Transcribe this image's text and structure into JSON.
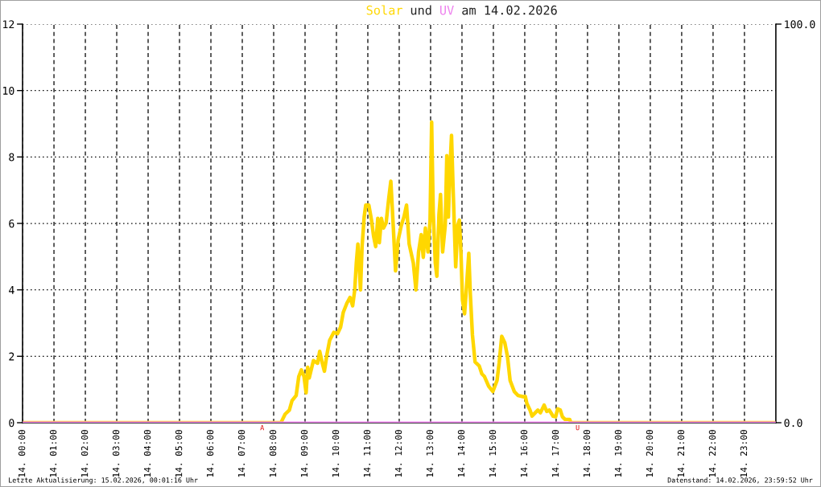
{
  "chart_data": {
    "type": "line",
    "title": "Solar und UV am 14.02.2026",
    "xlim": [
      "2026-02-14T00:00",
      "2026-02-15T00:00"
    ],
    "xticks": [
      {
        "value": "2026-02-14T00:00",
        "label": "14. 00:00"
      },
      {
        "value": "2026-02-14T01:00",
        "label": "14. 01:00"
      },
      {
        "value": "2026-02-14T02:00",
        "label": "14. 02:00"
      },
      {
        "value": "2026-02-14T03:00",
        "label": "14. 03:00"
      },
      {
        "value": "2026-02-14T04:00",
        "label": "14. 04:00"
      },
      {
        "value": "2026-02-14T05:00",
        "label": "14. 05:00"
      },
      {
        "value": "2026-02-14T06:00",
        "label": "14. 06:00"
      },
      {
        "value": "2026-02-14T07:00",
        "label": "14. 07:00"
      },
      {
        "value": "2026-02-14T08:00",
        "label": "14. 08:00"
      },
      {
        "value": "2026-02-14T09:00",
        "label": "14. 09:00"
      },
      {
        "value": "2026-02-14T10:00",
        "label": "14. 10:00"
      },
      {
        "value": "2026-02-14T11:00",
        "label": "14. 11:00"
      },
      {
        "value": "2026-02-14T12:00",
        "label": "14. 12:00"
      },
      {
        "value": "2026-02-14T13:00",
        "label": "14. 13:00"
      },
      {
        "value": "2026-02-14T14:00",
        "label": "14. 14:00"
      },
      {
        "value": "2026-02-14T15:00",
        "label": "14. 15:00"
      },
      {
        "value": "2026-02-14T16:00",
        "label": "14. 16:00"
      },
      {
        "value": "2026-02-14T17:00",
        "label": "14. 17:00"
      },
      {
        "value": "2026-02-14T18:00",
        "label": "14. 18:00"
      },
      {
        "value": "2026-02-14T19:00",
        "label": "14. 19:00"
      },
      {
        "value": "2026-02-14T20:00",
        "label": "14. 20:00"
      },
      {
        "value": "2026-02-14T21:00",
        "label": "14. 21:00"
      },
      {
        "value": "2026-02-14T22:00",
        "label": "14. 22:00"
      },
      {
        "value": "2026-02-14T23:00",
        "label": "14. 23:00"
      }
    ],
    "ylim": [
      0,
      12
    ],
    "yticks": [
      0,
      2,
      4,
      6,
      8,
      10,
      12
    ],
    "y2lim": [
      0,
      100
    ],
    "y2ticks": [
      {
        "value": 0,
        "label": "0.0"
      },
      {
        "value": 100,
        "label": "100.0"
      }
    ],
    "grid": true,
    "line_style": "solid",
    "series": [
      {
        "color": "#ffd700",
        "x": [
          "2026-02-14T00:00",
          "2026-02-14T08:14",
          "2026-02-14T08:17",
          "2026-02-14T08:22",
          "2026-02-14T08:30",
          "2026-02-14T08:35",
          "2026-02-14T08:43",
          "2026-02-14T08:48",
          "2026-02-14T08:53",
          "2026-02-14T08:58",
          "2026-02-14T09:02",
          "2026-02-14T09:05",
          "2026-02-14T09:08",
          "2026-02-14T09:16",
          "2026-02-14T09:24",
          "2026-02-14T09:28",
          "2026-02-14T09:33",
          "2026-02-14T09:37",
          "2026-02-14T09:42",
          "2026-02-14T09:47",
          "2026-02-14T09:55",
          "2026-02-14T10:02",
          "2026-02-14T10:08",
          "2026-02-14T10:13",
          "2026-02-14T10:20",
          "2026-02-14T10:26",
          "2026-02-14T10:31",
          "2026-02-14T10:35",
          "2026-02-14T10:38",
          "2026-02-14T10:41",
          "2026-02-14T10:44",
          "2026-02-14T10:46",
          "2026-02-14T10:49",
          "2026-02-14T10:53",
          "2026-02-14T10:56",
          "2026-02-14T11:02",
          "2026-02-14T11:07",
          "2026-02-14T11:11",
          "2026-02-14T11:15",
          "2026-02-14T11:19",
          "2026-02-14T11:22",
          "2026-02-14T11:26",
          "2026-02-14T11:30",
          "2026-02-14T11:35",
          "2026-02-14T11:40",
          "2026-02-14T11:44",
          "2026-02-14T11:48",
          "2026-02-14T11:53",
          "2026-02-14T11:58",
          "2026-02-14T12:04",
          "2026-02-14T12:09",
          "2026-02-14T12:14",
          "2026-02-14T12:19",
          "2026-02-14T12:27",
          "2026-02-14T12:32",
          "2026-02-14T12:37",
          "2026-02-14T12:42",
          "2026-02-14T12:46",
          "2026-02-14T12:50",
          "2026-02-14T12:55",
          "2026-02-14T12:59",
          "2026-02-14T13:02",
          "2026-02-14T13:05",
          "2026-02-14T13:09",
          "2026-02-14T13:12",
          "2026-02-14T13:16",
          "2026-02-14T13:19",
          "2026-02-14T13:23",
          "2026-02-14T13:28",
          "2026-02-14T13:31",
          "2026-02-14T13:34",
          "2026-02-14T13:37",
          "2026-02-14T13:40",
          "2026-02-14T13:43",
          "2026-02-14T13:47",
          "2026-02-14T13:48",
          "2026-02-14T13:52",
          "2026-02-14T13:55",
          "2026-02-14T13:58",
          "2026-02-14T14:01",
          "2026-02-14T14:05",
          "2026-02-14T14:09",
          "2026-02-14T14:13",
          "2026-02-14T14:16",
          "2026-02-14T14:20",
          "2026-02-14T14:25",
          "2026-02-14T14:33",
          "2026-02-14T14:38",
          "2026-02-14T14:43",
          "2026-02-14T14:51",
          "2026-02-14T14:59",
          "2026-02-14T15:07",
          "2026-02-14T15:11",
          "2026-02-14T15:16",
          "2026-02-14T15:22",
          "2026-02-14T15:27",
          "2026-02-14T15:32",
          "2026-02-14T15:40",
          "2026-02-14T15:47",
          "2026-02-14T15:58",
          "2026-02-14T16:01",
          "2026-02-14T16:04",
          "2026-02-14T16:10",
          "2026-02-14T16:14",
          "2026-02-14T16:20",
          "2026-02-14T16:25",
          "2026-02-14T16:30",
          "2026-02-14T16:37",
          "2026-02-14T16:42",
          "2026-02-14T16:47",
          "2026-02-14T16:54",
          "2026-02-14T16:59",
          "2026-02-14T17:03",
          "2026-02-14T17:08",
          "2026-02-14T17:12",
          "2026-02-14T17:17",
          "2026-02-14T17:26",
          "2026-02-14T17:28",
          "2026-02-15T00:00"
        ],
        "values": [
          0,
          0,
          0.1,
          0.26,
          0.38,
          0.66,
          0.82,
          1.39,
          1.59,
          1.39,
          0.9,
          1.67,
          1.35,
          1.87,
          1.79,
          2.15,
          1.79,
          1.55,
          2.07,
          2.48,
          2.72,
          2.68,
          2.88,
          3.32,
          3.6,
          3.77,
          3.52,
          4.0,
          4.81,
          5.38,
          4.57,
          4.0,
          5.3,
          6.19,
          6.55,
          6.55,
          6.1,
          5.62,
          5.3,
          6.15,
          5.42,
          6.15,
          5.86,
          6.02,
          6.75,
          7.27,
          6.1,
          4.57,
          5.5,
          5.94,
          6.19,
          6.55,
          5.38,
          4.81,
          4.0,
          5.14,
          5.66,
          4.98,
          5.86,
          5.14,
          6.1,
          9.05,
          6.35,
          4.81,
          4.41,
          6.27,
          6.87,
          5.14,
          5.94,
          8.04,
          6.19,
          7.64,
          8.65,
          7.07,
          5.14,
          4.69,
          5.94,
          6.1,
          5.14,
          3.69,
          3.28,
          4.17,
          5.1,
          3.85,
          2.64,
          1.83,
          1.71,
          1.47,
          1.39,
          1.1,
          0.94,
          1.27,
          1.79,
          2.6,
          2.4,
          1.99,
          1.27,
          0.94,
          0.82,
          0.78,
          0.79,
          0.58,
          0.38,
          0.2,
          0.3,
          0.38,
          0.3,
          0.53,
          0.34,
          0.38,
          0.2,
          0.18,
          0.42,
          0.38,
          0.18,
          0.1,
          0.1,
          0,
          0
        ]
      },
      {
        "color": "#ee82ee",
        "axis": "y2",
        "x": [
          "2026-02-14T00:00",
          "2026-02-15T00:00"
        ],
        "values": [
          0,
          0
        ]
      }
    ],
    "annotations": [
      {
        "text": "A",
        "x": "2026-02-14T07:38",
        "y": 0
      },
      {
        "text": "U",
        "x": "2026-02-14T17:41",
        "y": 0
      },
      "Letzte Aktualisierung: 15.02.2026, 00:01:16 Uhr",
      "Datenstand: 14.02.2026, 23:59:52 Uhr"
    ]
  }
}
